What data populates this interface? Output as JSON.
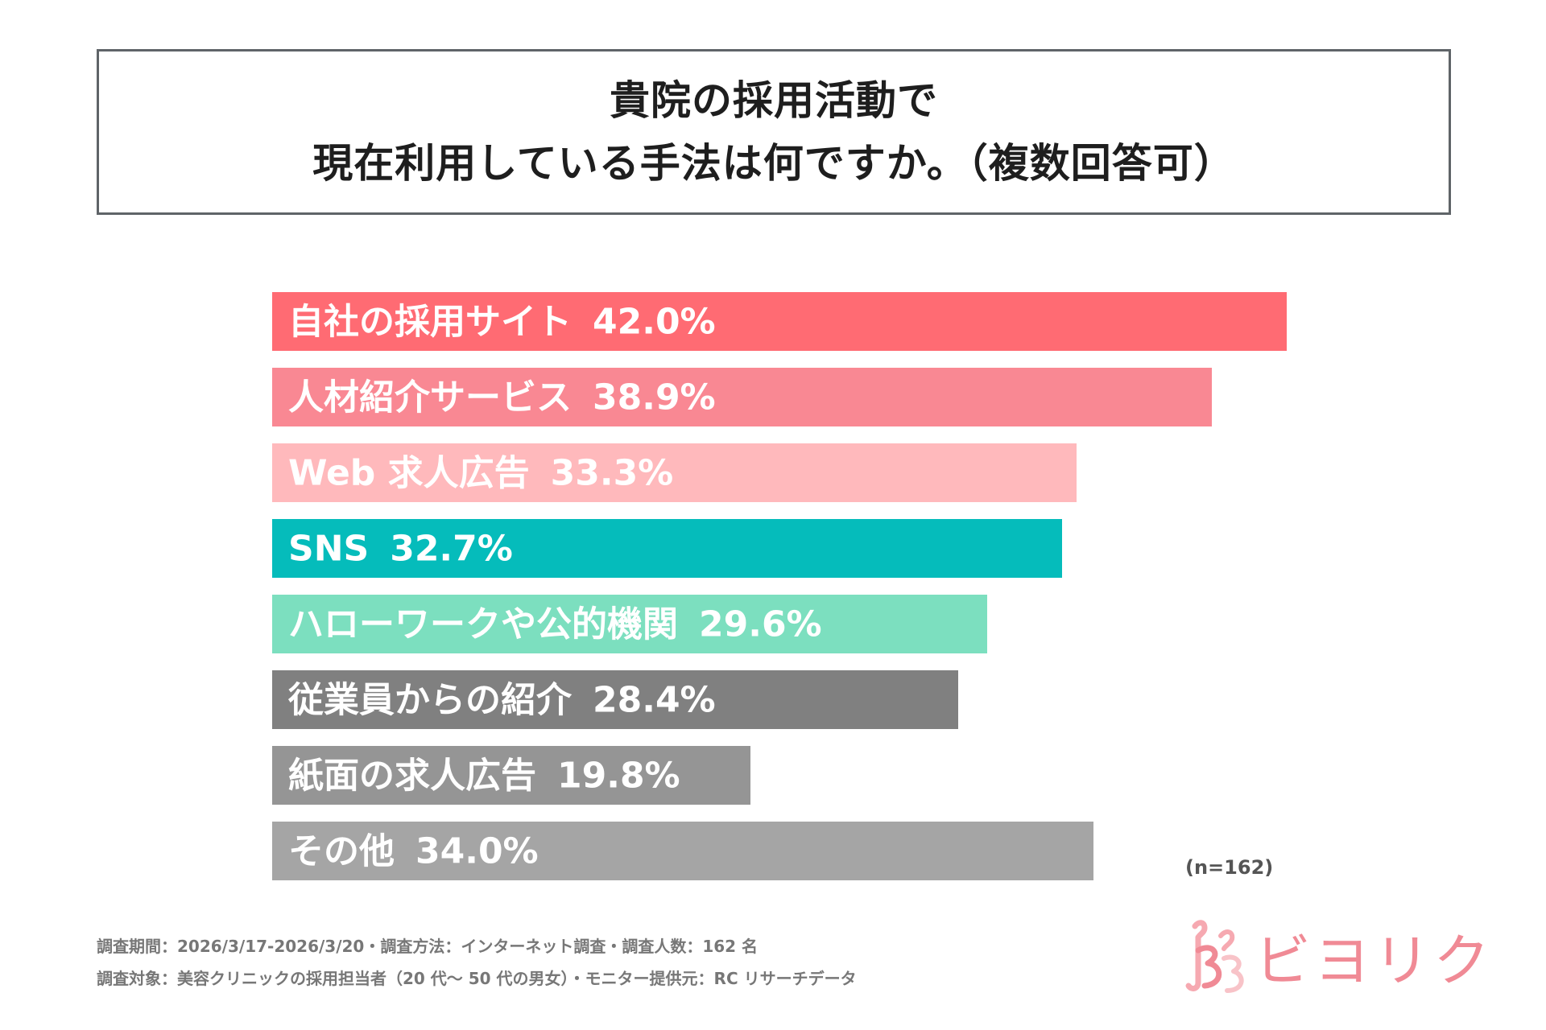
{
  "title": {
    "line1": "貴院の採用活動で",
    "line2": "現在利用している手法は何ですか。（複数回答可）"
  },
  "chart_data": {
    "type": "bar",
    "orientation": "horizontal",
    "title": "貴院の採用活動で 現在利用している手法は何ですか。（複数回答可）",
    "unit": "%",
    "xlim": [
      0,
      45
    ],
    "grid": false,
    "categories": [
      "自社の採用サイト",
      "人材紹介サービス",
      "Web 求人広告",
      "SNS",
      "ハローワークや公的機関",
      "従業員からの紹介",
      "紙面の求人広告",
      "その他"
    ],
    "values": [
      42.0,
      38.9,
      33.3,
      32.7,
      29.6,
      28.4,
      19.8,
      34.0
    ],
    "value_labels": [
      "42.0%",
      "38.9%",
      "33.3%",
      "32.7%",
      "29.6%",
      "28.4%",
      "19.8%",
      "34.0%"
    ],
    "colors": [
      "#ff6b73",
      "#f98893",
      "#ffb9bc",
      "#05bcbb",
      "#7cdfbf",
      "#808080",
      "#959595",
      "#a5a5a5"
    ],
    "sample_note": "(n=162)"
  },
  "footnotes": {
    "line1": "調査期間：2026/3/17-2026/3/20・調査方法：インターネット調査・調査人数：162 名",
    "line2": "調査対象：美容クリニックの採用担当者（20 代〜 50 代の男女）・モニター提供元：RC リサーチデータ"
  },
  "logo": {
    "text": "ビヨリク",
    "color": "#f08a95",
    "icon": "bb-flower-logo-icon"
  }
}
